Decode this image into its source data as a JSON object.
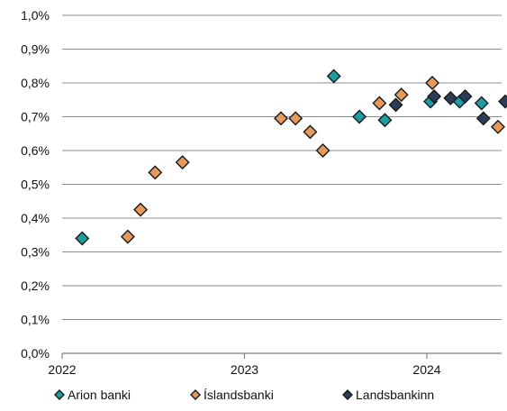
{
  "chart_data": {
    "type": "scatter",
    "title": "",
    "xlabel": "",
    "ylabel": "",
    "xlim": [
      2022.0,
      2024.43
    ],
    "ylim": [
      0.0,
      1.0
    ],
    "grid": true,
    "legend_position": "bottom",
    "x_ticks": [
      {
        "value": 2022,
        "label": "2022"
      },
      {
        "value": 2023,
        "label": "2023"
      },
      {
        "value": 2024,
        "label": "2024"
      }
    ],
    "y_ticks": [
      {
        "value": 0.0,
        "label": "0,0%"
      },
      {
        "value": 0.1,
        "label": "0,1%"
      },
      {
        "value": 0.2,
        "label": "0,2%"
      },
      {
        "value": 0.3,
        "label": "0,3%"
      },
      {
        "value": 0.4,
        "label": "0,4%"
      },
      {
        "value": 0.5,
        "label": "0,5%"
      },
      {
        "value": 0.6,
        "label": "0,6%"
      },
      {
        "value": 0.7,
        "label": "0,7%"
      },
      {
        "value": 0.8,
        "label": "0,8%"
      },
      {
        "value": 0.9,
        "label": "0,9%"
      },
      {
        "value": 1.0,
        "label": "1,0%"
      }
    ],
    "series": [
      {
        "name": "Arion banki",
        "color": "#1a9ea2",
        "marker": "diamond",
        "points": [
          {
            "x": 2022.11,
            "y": 0.34
          },
          {
            "x": 2023.49,
            "y": 0.82
          },
          {
            "x": 2023.63,
            "y": 0.7
          },
          {
            "x": 2023.77,
            "y": 0.69
          },
          {
            "x": 2024.02,
            "y": 0.745
          },
          {
            "x": 2024.18,
            "y": 0.745
          },
          {
            "x": 2024.3,
            "y": 0.74
          }
        ]
      },
      {
        "name": "Íslandsbanki",
        "color": "#e59a5c",
        "marker": "diamond",
        "points": [
          {
            "x": 2022.36,
            "y": 0.345
          },
          {
            "x": 2022.43,
            "y": 0.425
          },
          {
            "x": 2022.51,
            "y": 0.535
          },
          {
            "x": 2022.66,
            "y": 0.565
          },
          {
            "x": 2023.2,
            "y": 0.695
          },
          {
            "x": 2023.28,
            "y": 0.695
          },
          {
            "x": 2023.36,
            "y": 0.655
          },
          {
            "x": 2023.43,
            "y": 0.6
          },
          {
            "x": 2023.74,
            "y": 0.74
          },
          {
            "x": 2023.86,
            "y": 0.765
          },
          {
            "x": 2024.03,
            "y": 0.8
          },
          {
            "x": 2024.39,
            "y": 0.67
          }
        ]
      },
      {
        "name": "Landsbankinn",
        "color": "#2b3d59",
        "marker": "diamond",
        "points": [
          {
            "x": 2023.83,
            "y": 0.735
          },
          {
            "x": 2024.04,
            "y": 0.76
          },
          {
            "x": 2024.13,
            "y": 0.755
          },
          {
            "x": 2024.21,
            "y": 0.76
          },
          {
            "x": 2024.31,
            "y": 0.695
          },
          {
            "x": 2024.43,
            "y": 0.745
          }
        ]
      }
    ]
  }
}
